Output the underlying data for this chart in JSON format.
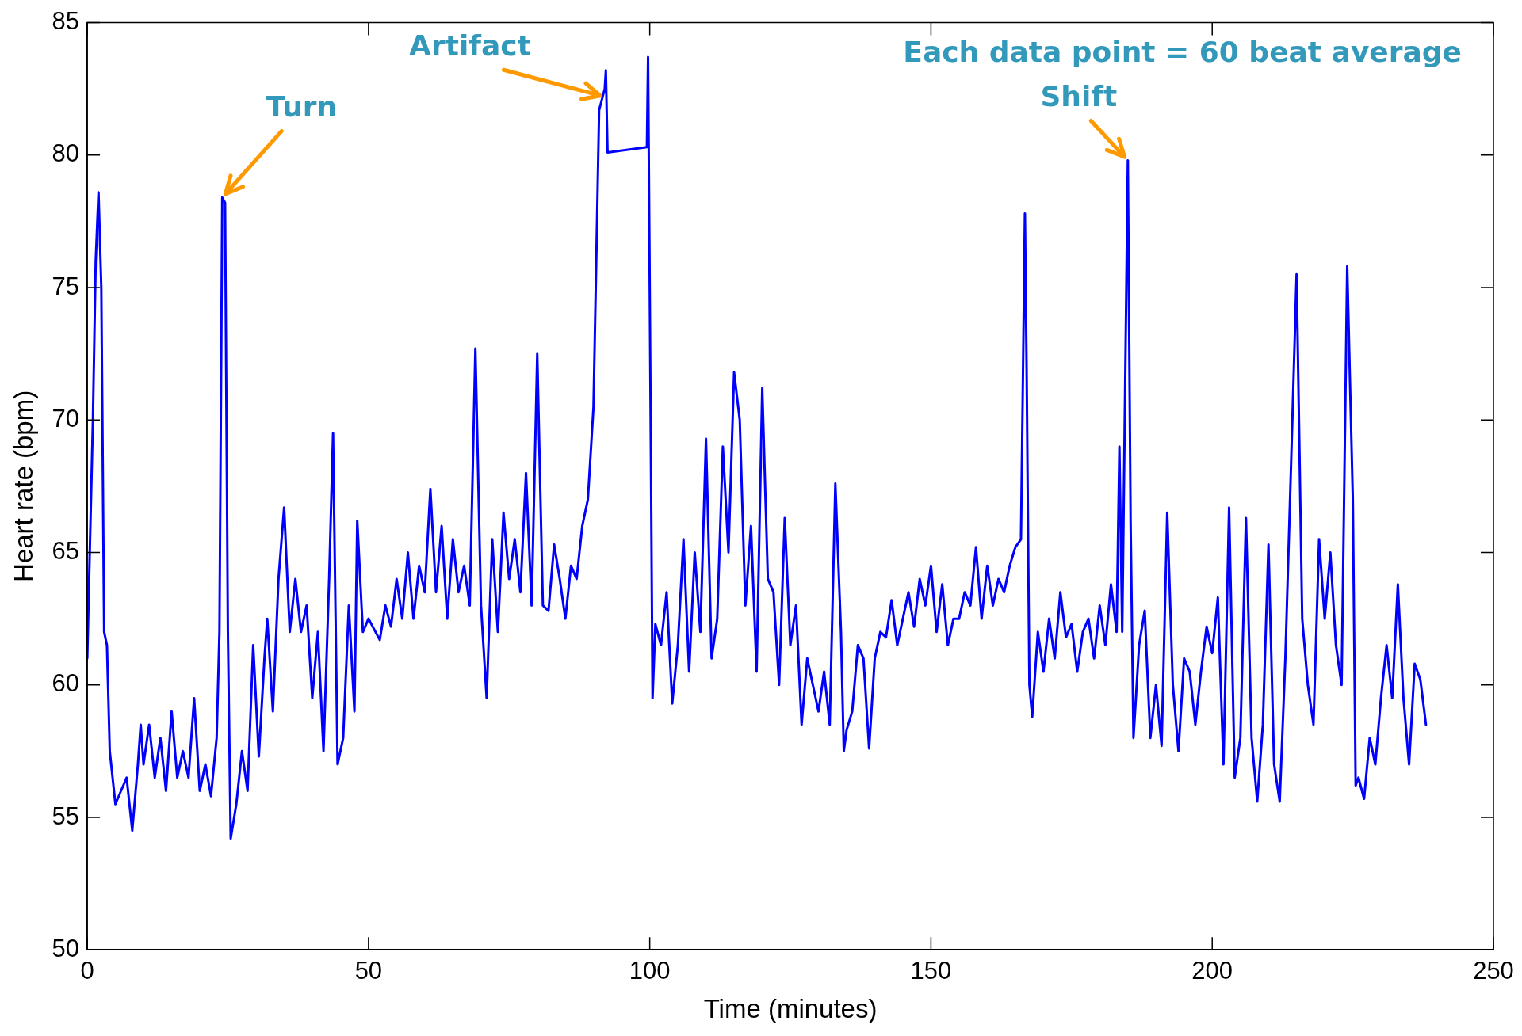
{
  "chart_data": {
    "type": "line",
    "xlabel": "Time (minutes)",
    "ylabel": "Heart rate (bpm)",
    "xlim": [
      0,
      250
    ],
    "xticks": [
      0,
      50,
      100,
      150,
      200,
      250
    ],
    "ylim": [
      50,
      85
    ],
    "yticks": [
      50,
      55,
      60,
      65,
      70,
      75,
      80,
      85
    ],
    "grid": false,
    "legend": false,
    "marker": "none",
    "line_style": "solid",
    "annotations": [
      {
        "text": "Turn",
        "x": 24,
        "y": 78.4
      },
      {
        "text": "Artifact",
        "x": 92,
        "y": 82.2
      },
      {
        "text": "Shift",
        "x": 185,
        "y": 79.8
      },
      "Each data point = 60 beat average"
    ],
    "x": [
      0,
      1,
      1.5,
      2,
      2.5,
      3,
      3.5,
      4,
      5,
      6,
      7,
      8,
      9,
      9.5,
      10,
      11,
      12,
      13,
      14,
      15,
      16,
      17,
      18,
      19,
      20,
      21,
      22,
      23,
      23.5,
      24,
      24.5,
      25,
      25.5,
      26.5,
      27.5,
      28.5,
      29.5,
      30.5,
      31.5,
      32,
      33,
      34,
      35,
      36,
      37,
      38,
      39,
      40,
      41,
      42,
      43,
      43.7,
      44.5,
      45.5,
      46.5,
      47.5,
      48,
      49,
      50,
      52,
      53,
      54,
      55,
      56,
      57,
      58,
      59,
      60,
      61,
      62,
      63,
      64,
      65,
      66,
      67,
      68,
      69,
      70,
      71,
      72,
      73,
      74,
      75,
      76,
      77,
      78,
      79,
      80,
      81,
      82,
      83,
      84,
      85,
      86,
      87,
      88,
      89,
      90,
      91,
      92,
      92.2,
      92.5,
      99.5,
      99.7,
      100,
      100.5,
      101,
      102,
      103,
      104,
      105,
      106,
      107,
      108,
      109,
      110,
      111,
      112,
      113,
      114,
      115,
      116,
      117,
      118,
      119,
      120,
      121,
      122,
      123,
      124,
      125,
      126,
      127,
      128,
      129,
      130,
      131,
      132,
      133,
      134,
      134.5,
      135,
      136,
      137,
      138,
      139,
      140,
      141,
      142,
      143,
      144,
      145,
      146,
      147,
      148,
      149,
      150,
      151,
      152,
      153,
      154,
      155,
      156,
      157,
      158,
      159,
      160,
      161,
      162,
      163,
      164,
      165,
      166,
      166.7,
      167,
      167.5,
      168,
      169,
      170,
      171,
      172,
      173,
      174,
      175,
      176,
      177,
      178,
      179,
      180,
      181,
      182,
      183,
      183.5,
      184,
      185,
      185.5,
      186,
      187,
      188,
      189,
      190,
      191,
      192,
      193,
      194,
      195,
      196,
      197,
      198,
      199,
      200,
      201,
      202,
      203,
      204,
      205,
      206,
      207,
      208,
      209,
      210,
      211,
      212,
      213,
      214,
      215,
      216,
      217,
      218,
      219,
      220,
      221,
      222,
      223,
      224,
      225,
      225.5,
      226,
      227,
      228,
      229,
      230,
      231,
      232,
      233,
      234,
      235,
      236,
      237,
      238
    ],
    "series": [
      {
        "color": "#0000ff",
        "values": [
          61,
          70,
          76,
          78.6,
          75,
          62,
          61.5,
          57.5,
          55.5,
          56,
          56.5,
          54.5,
          57,
          58.5,
          57,
          58.5,
          56.5,
          58,
          56,
          59,
          56.5,
          57.5,
          56.5,
          59.5,
          56,
          57,
          55.8,
          58,
          62,
          78.4,
          78.2,
          62,
          54.2,
          55.5,
          57.5,
          56,
          61.5,
          57.3,
          61,
          62.5,
          59,
          64,
          66.7,
          62,
          64,
          62,
          63,
          59.5,
          62,
          57.5,
          64,
          69.5,
          57,
          58,
          63,
          59,
          66.2,
          62,
          62.5,
          61.7,
          63,
          62.2,
          64,
          62.5,
          65,
          62.5,
          64.5,
          63.5,
          67.4,
          63.5,
          66,
          62.5,
          65.5,
          63.5,
          64.5,
          63,
          72.7,
          63,
          59.5,
          65.5,
          62,
          66.5,
          64,
          65.5,
          63.5,
          68,
          63,
          72.5,
          63,
          62.8,
          65.3,
          64,
          62.5,
          64.5,
          64,
          66,
          67,
          70.5,
          81.7,
          82.5,
          83.2,
          80.1,
          80.3,
          83.7,
          75,
          59.5,
          62.3,
          61.5,
          63.5,
          59.3,
          61.5,
          65.5,
          60.5,
          65,
          62,
          69.3,
          61,
          62.5,
          69,
          65,
          71.8,
          70,
          63,
          66,
          60.5,
          71.2,
          64,
          63.5,
          60,
          66.3,
          61.5,
          63,
          58.5,
          61,
          60,
          59,
          60.5,
          58.5,
          67.6,
          62,
          57.5,
          58.3,
          59,
          61.5,
          61,
          57.6,
          61,
          62,
          61.8,
          63.2,
          61.5,
          62.5,
          63.5,
          62.2,
          64,
          63,
          64.5,
          62,
          63.8,
          61.5,
          62.5,
          62.5,
          63.5,
          63,
          65.2,
          62.5,
          64.5,
          63,
          64,
          63.5,
          64.5,
          65.2,
          65.5,
          77.8,
          72,
          60,
          58.8,
          62,
          60.5,
          62.5,
          61,
          63.5,
          61.8,
          62.3,
          60.5,
          62,
          62.5,
          61,
          63,
          61.5,
          63.8,
          62,
          69,
          62,
          79.8,
          66,
          58,
          61.5,
          62.8,
          58,
          60,
          57.7,
          66.5,
          60,
          57.5,
          61,
          60.5,
          58.5,
          60.5,
          62.2,
          61.2,
          63.3,
          57,
          66.7,
          56.5,
          58,
          66.3,
          58,
          55.6,
          58.5,
          65.3,
          57,
          55.6,
          61,
          68.2,
          75.5,
          62.5,
          60,
          58.5,
          65.5,
          62.5,
          65,
          61.5,
          60,
          75.8,
          67,
          56.2,
          56.5,
          55.7,
          58,
          57,
          59.5,
          61.5,
          59.5,
          63.8,
          59.5,
          57,
          60.8,
          60.2,
          58.5
        ]
      }
    ]
  }
}
